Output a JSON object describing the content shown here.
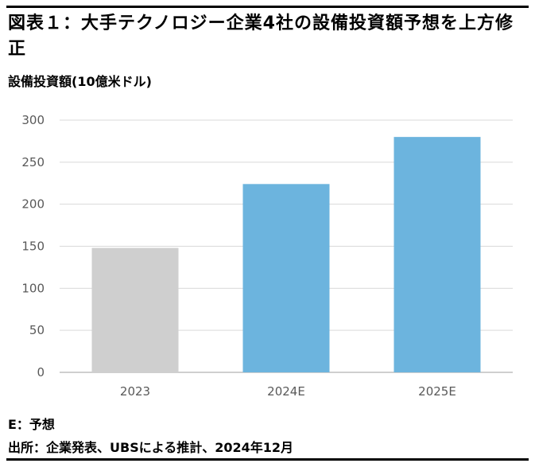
{
  "chart_data": {
    "type": "bar",
    "title": "図表１：大手テクノロジー企業4社の設備投資額予想を上方修正",
    "ylabel": "設備投資額(10億米ドル)",
    "xlabel": "",
    "categories": [
      "2023",
      "2024E",
      "2025E"
    ],
    "values": [
      148,
      224,
      280
    ],
    "ylim": [
      0,
      300
    ],
    "yticks": [
      0,
      50,
      100,
      150,
      200,
      250,
      300
    ],
    "bar_colors": [
      "#cfcfcf",
      "#6cb4de",
      "#6cb4de"
    ],
    "grid": true,
    "legend": "none"
  },
  "footer": {
    "note": "E：予想",
    "source": "出所：企業発表、UBSによる推計、2024年12月"
  },
  "colors": {
    "gridline": "#d9d9d9",
    "axis": "#bfbfbf",
    "tick_text": "#595959"
  }
}
